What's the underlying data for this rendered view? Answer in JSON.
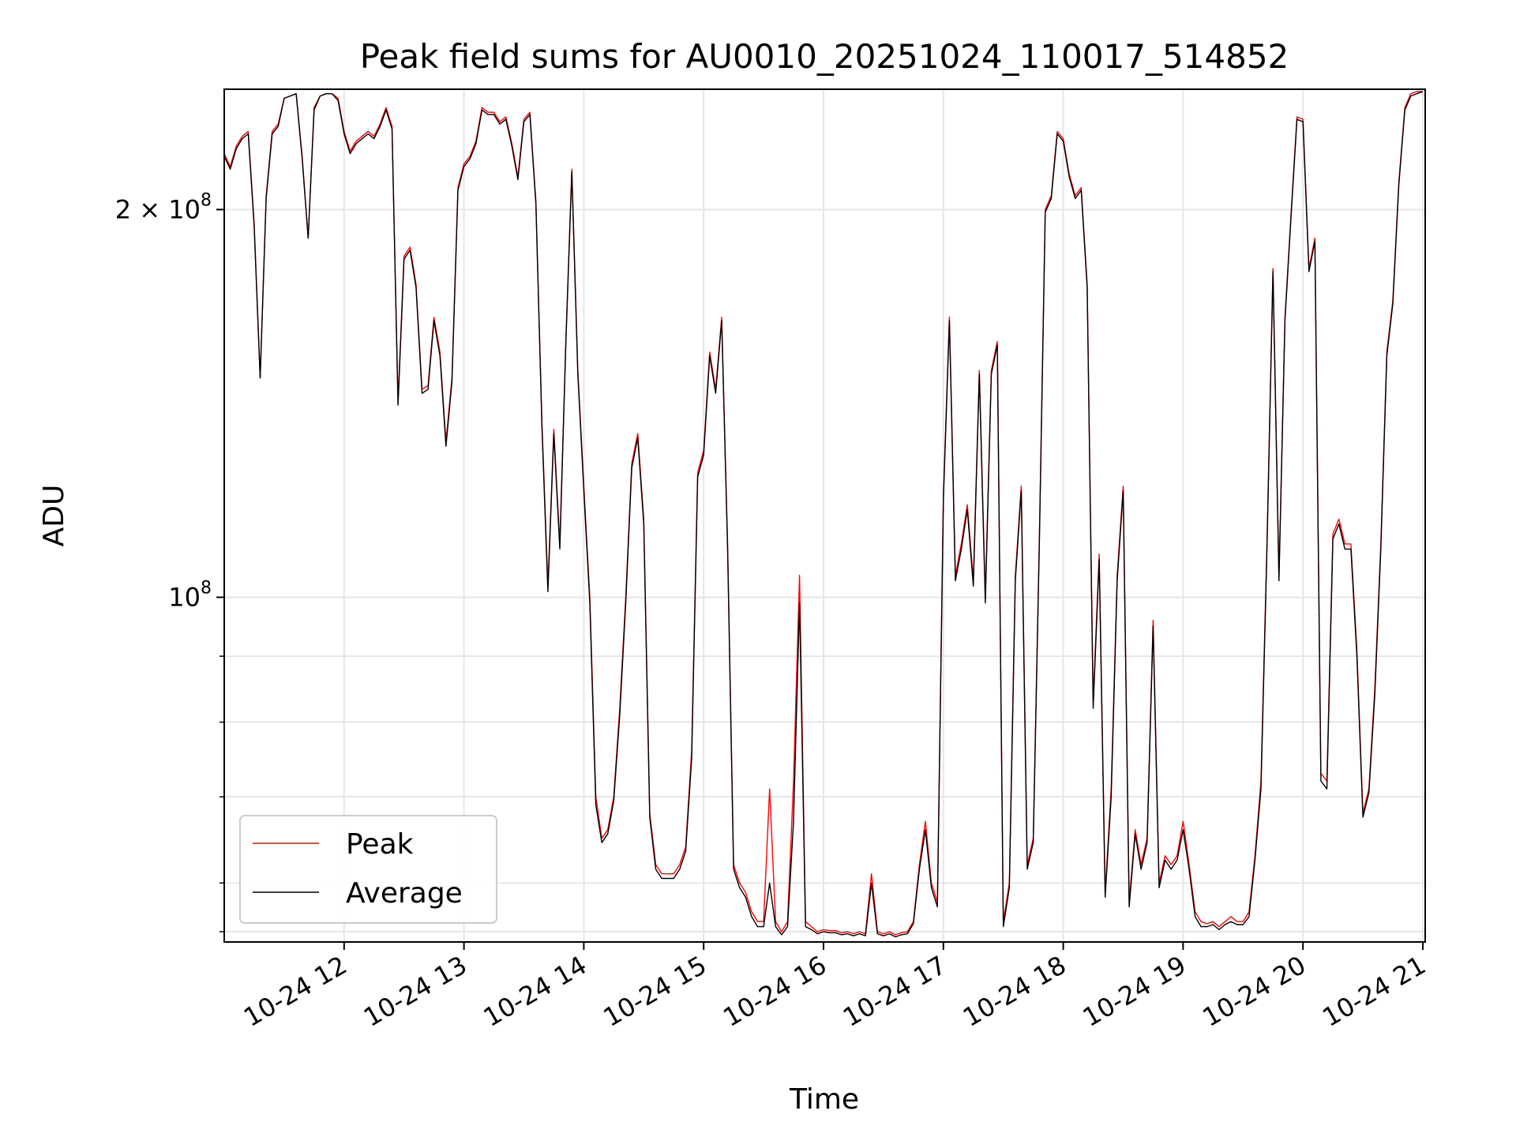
{
  "chart_data": {
    "type": "line",
    "title": "Peak field sums for AU0010_20251024_110017_514852",
    "xlabel": "Time",
    "ylabel": "ADU",
    "yscale": "log",
    "x_unit": "hours since 2025-10-24 00:00",
    "xlim": [
      11.0,
      21.02
    ],
    "ylim": [
      54000000,
      248000000
    ],
    "x_ticks": [
      {
        "value": 12,
        "label": "10-24 12"
      },
      {
        "value": 13,
        "label": "10-24 13"
      },
      {
        "value": 14,
        "label": "10-24 14"
      },
      {
        "value": 15,
        "label": "10-24 15"
      },
      {
        "value": 16,
        "label": "10-24 16"
      },
      {
        "value": 17,
        "label": "10-24 17"
      },
      {
        "value": 18,
        "label": "10-24 18"
      },
      {
        "value": 19,
        "label": "10-24 19"
      },
      {
        "value": 20,
        "label": "10-24 20"
      },
      {
        "value": 21,
        "label": "10-24 21"
      }
    ],
    "y_major_ticks": [
      {
        "value": 200000000,
        "mantissa": "2",
        "exponent": "8"
      },
      {
        "value": 100000000,
        "mantissa": "",
        "exponent": "8"
      }
    ],
    "y_minor_ticks": [
      55000000,
      60000000,
      70000000,
      80000000,
      90000000
    ],
    "grid": true,
    "legend": {
      "position": "lower-left",
      "entries": [
        {
          "label": "Peak",
          "color": "#ff0000"
        },
        {
          "label": "Average",
          "color": "#000000"
        }
      ]
    },
    "series": [
      {
        "name": "Peak",
        "color": "#ff0000",
        "x": [
          11.0,
          11.05,
          11.1,
          11.15,
          11.2,
          11.25,
          11.3,
          11.35,
          11.4,
          11.45,
          11.5,
          11.55,
          11.6,
          11.65,
          11.7,
          11.75,
          11.8,
          11.85,
          11.9,
          11.95,
          12.0,
          12.05,
          12.1,
          12.15,
          12.2,
          12.25,
          12.3,
          12.35,
          12.4,
          12.45,
          12.5,
          12.55,
          12.6,
          12.65,
          12.7,
          12.75,
          12.8,
          12.85,
          12.9,
          12.95,
          13.0,
          13.05,
          13.1,
          13.15,
          13.2,
          13.25,
          13.3,
          13.35,
          13.4,
          13.45,
          13.5,
          13.55,
          13.6,
          13.65,
          13.7,
          13.75,
          13.8,
          13.85,
          13.9,
          13.95,
          14.0,
          14.05,
          14.1,
          14.15,
          14.2,
          14.25,
          14.3,
          14.35,
          14.4,
          14.45,
          14.5,
          14.55,
          14.6,
          14.65,
          14.7,
          14.75,
          14.8,
          14.85,
          14.9,
          14.95,
          15.0,
          15.05,
          15.1,
          15.15,
          15.2,
          15.25,
          15.3,
          15.35,
          15.4,
          15.45,
          15.5,
          15.55,
          15.6,
          15.65,
          15.7,
          15.75,
          15.8,
          15.85,
          15.9,
          15.95,
          16.0,
          16.05,
          16.1,
          16.15,
          16.2,
          16.25,
          16.3,
          16.35,
          16.4,
          16.45,
          16.5,
          16.55,
          16.6,
          16.65,
          16.7,
          16.75,
          16.8,
          16.85,
          16.9,
          16.95,
          17.0,
          17.05,
          17.1,
          17.15,
          17.2,
          17.25,
          17.3,
          17.35,
          17.4,
          17.45,
          17.5,
          17.55,
          17.6,
          17.65,
          17.7,
          17.75,
          17.8,
          17.85,
          17.9,
          17.95,
          18.0,
          18.05,
          18.1,
          18.15,
          18.2,
          18.25,
          18.3,
          18.35,
          18.4,
          18.45,
          18.5,
          18.55,
          18.6,
          18.65,
          18.7,
          18.75,
          18.8,
          18.85,
          18.9,
          18.95,
          19.0,
          19.05,
          19.1,
          19.15,
          19.2,
          19.25,
          19.3,
          19.35,
          19.4,
          19.45,
          19.5,
          19.55,
          19.6,
          19.65,
          19.7,
          19.75,
          19.8,
          19.85,
          19.9,
          19.95,
          20.0,
          20.05,
          20.1,
          20.15,
          20.2,
          20.25,
          20.3,
          20.35,
          20.4,
          20.45,
          20.5,
          20.55,
          20.6,
          20.65,
          20.7,
          20.75,
          20.8,
          20.85,
          20.9,
          20.95,
          21.0
        ],
        "values": [
          221000000,
          216000000,
          224000000,
          228000000,
          230000000,
          195000000,
          148000000,
          205000000,
          230000000,
          233000000,
          244000000,
          245000000,
          246000000,
          220000000,
          190000000,
          240000000,
          245000000,
          246000000,
          246000000,
          244000000,
          230000000,
          222000000,
          226000000,
          228000000,
          230000000,
          228000000,
          233000000,
          240000000,
          232000000,
          142000000,
          184000000,
          187000000,
          175000000,
          145000000,
          146000000,
          165000000,
          155000000,
          132000000,
          148000000,
          208000000,
          217000000,
          220000000,
          226000000,
          240000000,
          238000000,
          238000000,
          234000000,
          236000000,
          225000000,
          212000000,
          235000000,
          238000000,
          203000000,
          137000000,
          102000000,
          135000000,
          110000000,
          158000000,
          215000000,
          150000000,
          122000000,
          100000000,
          70000000,
          65000000,
          66000000,
          70000000,
          82000000,
          100000000,
          127000000,
          134000000,
          115000000,
          68000000,
          62000000,
          61000000,
          61000000,
          61000000,
          62000000,
          64000000,
          76000000,
          125000000,
          130000000,
          155000000,
          145000000,
          165000000,
          110000000,
          62000000,
          60000000,
          59000000,
          57000000,
          56000000,
          56000000,
          71000000,
          56000000,
          55000000,
          56000000,
          72000000,
          104000000,
          56000000,
          55500000,
          55000000,
          55200000,
          55100000,
          55100000,
          54900000,
          55000000,
          54800000,
          55000000,
          54800000,
          61000000,
          55000000,
          54800000,
          55000000,
          54700000,
          54900000,
          55000000,
          56000000,
          62000000,
          67000000,
          60000000,
          58000000,
          120000000,
          165000000,
          104000000,
          110000000,
          118000000,
          103000000,
          150000000,
          100000000,
          150000000,
          158000000,
          56000000,
          60000000,
          104000000,
          122000000,
          62000000,
          65000000,
          110000000,
          200000000,
          205000000,
          230000000,
          227000000,
          213000000,
          205000000,
          208000000,
          175000000,
          83000000,
          108000000,
          59000000,
          71000000,
          104000000,
          122000000,
          58000000,
          66000000,
          62000000,
          65000000,
          96000000,
          60000000,
          63000000,
          62000000,
          63000000,
          67000000,
          62000000,
          57000000,
          56000000,
          55800000,
          56000000,
          55500000,
          56000000,
          56500000,
          56000000,
          56000000,
          57000000,
          63000000,
          72000000,
          110000000,
          180000000,
          104000000,
          165000000,
          198000000,
          236000000,
          235000000,
          180000000,
          190000000,
          73000000,
          72000000,
          112000000,
          115000000,
          110000000,
          110000000,
          91000000,
          68000000,
          71000000,
          85000000,
          110000000,
          155000000,
          170000000,
          210000000,
          240000000,
          246000000,
          247000000,
          247000000
        ]
      },
      {
        "name": "Average",
        "color": "#000000",
        "x": [
          11.0,
          11.05,
          11.1,
          11.15,
          11.2,
          11.25,
          11.3,
          11.35,
          11.4,
          11.45,
          11.5,
          11.55,
          11.6,
          11.65,
          11.7,
          11.75,
          11.8,
          11.85,
          11.9,
          11.95,
          12.0,
          12.05,
          12.1,
          12.15,
          12.2,
          12.25,
          12.3,
          12.35,
          12.4,
          12.45,
          12.5,
          12.55,
          12.6,
          12.65,
          12.7,
          12.75,
          12.8,
          12.85,
          12.9,
          12.95,
          13.0,
          13.05,
          13.1,
          13.15,
          13.2,
          13.25,
          13.3,
          13.35,
          13.4,
          13.45,
          13.5,
          13.55,
          13.6,
          13.65,
          13.7,
          13.75,
          13.8,
          13.85,
          13.9,
          13.95,
          14.0,
          14.05,
          14.1,
          14.15,
          14.2,
          14.25,
          14.3,
          14.35,
          14.4,
          14.45,
          14.5,
          14.55,
          14.6,
          14.65,
          14.7,
          14.75,
          14.8,
          14.85,
          14.9,
          14.95,
          15.0,
          15.05,
          15.1,
          15.15,
          15.2,
          15.25,
          15.3,
          15.35,
          15.4,
          15.45,
          15.5,
          15.55,
          15.6,
          15.65,
          15.7,
          15.75,
          15.8,
          15.85,
          15.9,
          15.95,
          16.0,
          16.05,
          16.1,
          16.15,
          16.2,
          16.25,
          16.3,
          16.35,
          16.4,
          16.45,
          16.5,
          16.55,
          16.6,
          16.65,
          16.7,
          16.75,
          16.8,
          16.85,
          16.9,
          16.95,
          17.0,
          17.05,
          17.1,
          17.15,
          17.2,
          17.25,
          17.3,
          17.35,
          17.4,
          17.45,
          17.5,
          17.55,
          17.6,
          17.65,
          17.7,
          17.75,
          17.8,
          17.85,
          17.9,
          17.95,
          18.0,
          18.05,
          18.1,
          18.15,
          18.2,
          18.25,
          18.3,
          18.35,
          18.4,
          18.45,
          18.5,
          18.55,
          18.6,
          18.65,
          18.7,
          18.75,
          18.8,
          18.85,
          18.9,
          18.95,
          19.0,
          19.05,
          19.1,
          19.15,
          19.2,
          19.25,
          19.3,
          19.35,
          19.4,
          19.45,
          19.5,
          19.55,
          19.6,
          19.65,
          19.7,
          19.75,
          19.8,
          19.85,
          19.9,
          19.95,
          20.0,
          20.05,
          20.1,
          20.15,
          20.2,
          20.25,
          20.3,
          20.35,
          20.4,
          20.45,
          20.5,
          20.55,
          20.6,
          20.65,
          20.7,
          20.75,
          20.8,
          20.85,
          20.9,
          20.95,
          21.0
        ],
        "values": [
          220000000,
          215000000,
          223000000,
          227000000,
          229000000,
          194000000,
          148000000,
          204000000,
          229000000,
          232000000,
          244000000,
          245000000,
          246000000,
          219000000,
          190000000,
          239000000,
          245000000,
          246000000,
          246000000,
          243000000,
          229000000,
          221000000,
          225000000,
          227000000,
          229000000,
          227000000,
          232000000,
          239000000,
          231000000,
          141000000,
          183000000,
          186000000,
          174000000,
          144000000,
          145000000,
          164000000,
          154000000,
          131000000,
          147000000,
          207000000,
          216000000,
          219000000,
          225000000,
          239000000,
          237000000,
          237000000,
          233000000,
          235000000,
          224000000,
          211000000,
          234000000,
          237000000,
          202000000,
          136000000,
          101000000,
          134000000,
          109000000,
          157000000,
          214000000,
          149000000,
          121000000,
          99000000,
          69000000,
          64500000,
          65500000,
          69500000,
          81000000,
          99000000,
          126000000,
          133000000,
          114000000,
          67500000,
          61500000,
          60500000,
          60500000,
          60500000,
          61500000,
          63500000,
          75000000,
          124000000,
          129000000,
          154000000,
          144000000,
          164000000,
          109000000,
          61500000,
          59500000,
          58500000,
          56500000,
          55500000,
          55500000,
          60000000,
          55500000,
          54700000,
          55500000,
          67000000,
          99000000,
          55500000,
          55200000,
          54800000,
          55000000,
          54900000,
          54900000,
          54700000,
          54800000,
          54600000,
          54800000,
          54600000,
          60000000,
          54800000,
          54600000,
          54800000,
          54500000,
          54700000,
          54800000,
          55800000,
          61500000,
          66000000,
          59500000,
          57500000,
          119000000,
          164000000,
          103000000,
          109000000,
          117000000,
          102000000,
          149000000,
          99000000,
          149000000,
          157000000,
          55500000,
          59500000,
          103000000,
          121000000,
          61500000,
          64500000,
          109000000,
          199000000,
          204000000,
          229000000,
          226000000,
          212000000,
          204000000,
          207000000,
          174000000,
          82000000,
          107000000,
          58500000,
          70000000,
          103000000,
          121000000,
          57500000,
          65500000,
          61500000,
          64500000,
          95000000,
          59500000,
          62500000,
          61500000,
          62500000,
          66000000,
          61500000,
          56500000,
          55500000,
          55500000,
          55700000,
          55200000,
          55700000,
          56000000,
          55700000,
          55700000,
          56500000,
          62500000,
          71000000,
          109000000,
          179000000,
          103000000,
          164000000,
          197000000,
          235000000,
          234000000,
          179000000,
          189000000,
          72000000,
          71000000,
          111000000,
          114000000,
          109000000,
          109000000,
          90000000,
          67500000,
          70500000,
          84000000,
          109000000,
          154000000,
          169000000,
          209000000,
          239000000,
          245000000,
          246000000,
          247000000
        ]
      }
    ]
  }
}
